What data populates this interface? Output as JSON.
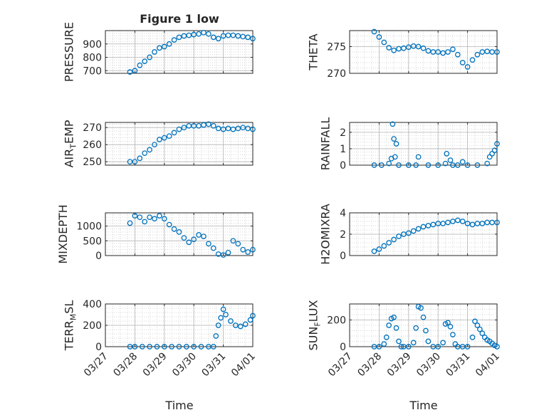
{
  "figure": {
    "title": "Figure 1 low",
    "xlabel": "Time"
  },
  "colors": {
    "marker": "#0072BD",
    "axis": "#262626",
    "grid": "#c8c8c8",
    "background": "#ffffff"
  },
  "chart_data": [
    {
      "type": "scatter",
      "ylabel": "PRESSURE",
      "title": "Figure 1 low",
      "xlim": [
        "03/27",
        "04/01"
      ],
      "ylim": [
        680,
        1000
      ],
      "yticks": [
        700,
        800,
        900
      ],
      "grid": true,
      "x": [
        "03/27 20:00",
        "03/28 00:00",
        "03/28 04:00",
        "03/28 08:00",
        "03/28 12:00",
        "03/28 16:00",
        "03/28 20:00",
        "03/29 00:00",
        "03/29 04:00",
        "03/29 08:00",
        "03/29 12:00",
        "03/29 16:00",
        "03/29 20:00",
        "03/30 00:00",
        "03/30 04:00",
        "03/30 08:00",
        "03/30 12:00",
        "03/30 16:00",
        "03/30 20:00",
        "03/31 00:00",
        "03/31 04:00",
        "03/31 08:00",
        "03/31 12:00",
        "03/31 16:00",
        "03/31 20:00",
        "04/01 00:00"
      ],
      "y": [
        690,
        700,
        740,
        770,
        800,
        840,
        870,
        880,
        900,
        930,
        950,
        960,
        965,
        970,
        975,
        985,
        975,
        950,
        940,
        960,
        965,
        965,
        960,
        955,
        950,
        940
      ]
    },
    {
      "type": "scatter",
      "ylabel": "THETA",
      "xlim": [
        "03/27",
        "04/01"
      ],
      "ylim": [
        270,
        278
      ],
      "yticks": [
        270,
        275
      ],
      "grid": true,
      "x": [
        "03/27 20:00",
        "03/28 00:00",
        "03/28 04:00",
        "03/28 08:00",
        "03/28 12:00",
        "03/28 16:00",
        "03/28 20:00",
        "03/29 00:00",
        "03/29 04:00",
        "03/29 08:00",
        "03/29 12:00",
        "03/29 16:00",
        "03/29 20:00",
        "03/30 00:00",
        "03/30 04:00",
        "03/30 08:00",
        "03/30 12:00",
        "03/30 16:00",
        "03/30 20:00",
        "03/31 00:00",
        "03/31 04:00",
        "03/31 08:00",
        "03/31 12:00",
        "03/31 16:00",
        "03/31 20:00",
        "04/01 00:00"
      ],
      "y": [
        277.8,
        276.8,
        275.8,
        274.8,
        274.3,
        274.6,
        274.7,
        274.9,
        275.1,
        275.0,
        274.7,
        274.2,
        274.0,
        274.0,
        273.8,
        274.0,
        274.5,
        273.5,
        272.0,
        271.2,
        272.5,
        273.5,
        274.0,
        274.1,
        274.0,
        274.0
      ]
    },
    {
      "type": "scatter",
      "ylabel": "AIR_TEMP",
      "ylabel_base": "AIR",
      "ylabel_sub": "T",
      "ylabel_rest": "EMP",
      "xlim": [
        "03/27",
        "04/01"
      ],
      "ylim": [
        248,
        273
      ],
      "yticks": [
        250,
        260,
        270
      ],
      "grid": true,
      "x": [
        "03/27 20:00",
        "03/28 00:00",
        "03/28 04:00",
        "03/28 08:00",
        "03/28 12:00",
        "03/28 16:00",
        "03/28 20:00",
        "03/29 00:00",
        "03/29 04:00",
        "03/29 08:00",
        "03/29 12:00",
        "03/29 16:00",
        "03/29 20:00",
        "03/30 00:00",
        "03/30 04:00",
        "03/30 08:00",
        "03/30 12:00",
        "03/30 16:00",
        "03/30 20:00",
        "03/31 00:00",
        "03/31 04:00",
        "03/31 08:00",
        "03/31 12:00",
        "03/31 16:00",
        "03/31 20:00",
        "04/01 00:00"
      ],
      "y": [
        250,
        250,
        252,
        255,
        257,
        260,
        263,
        264,
        265,
        267,
        269,
        270,
        271,
        271,
        271,
        271.5,
        272,
        271,
        269.5,
        269,
        269.5,
        269,
        269.5,
        270,
        269.5,
        269
      ]
    },
    {
      "type": "scatter",
      "ylabel": "RAINFALL",
      "xlim": [
        "03/27",
        "04/01"
      ],
      "ylim": [
        0,
        2.6
      ],
      "yticks": [
        0,
        1,
        2
      ],
      "grid": true,
      "x": [
        "03/27 20:00",
        "03/28 02:00",
        "03/28 08:00",
        "03/28 10:00",
        "03/28 11:00",
        "03/28 12:00",
        "03/28 13:00",
        "03/28 14:00",
        "03/28 16:00",
        "03/29 00:00",
        "03/29 06:00",
        "03/29 08:00",
        "03/29 16:00",
        "03/30 00:00",
        "03/30 06:00",
        "03/30 07:00",
        "03/30 10:00",
        "03/30 12:00",
        "03/30 16:00",
        "03/30 20:00",
        "03/31 00:00",
        "03/31 08:00",
        "03/31 16:00",
        "03/31 18:00",
        "03/31 20:00",
        "03/31 22:00",
        "04/01 00:00"
      ],
      "y": [
        0,
        0,
        0.1,
        0.4,
        2.5,
        1.6,
        0.5,
        1.3,
        0,
        0,
        0,
        0.5,
        0,
        0,
        0.1,
        0.7,
        0.3,
        0,
        0,
        0.2,
        0,
        0,
        0.1,
        0.5,
        0.7,
        0.9,
        1.3
      ]
    },
    {
      "type": "scatter",
      "ylabel": "MIXDEPTH",
      "xlim": [
        "03/27",
        "04/01"
      ],
      "ylim": [
        0,
        1450
      ],
      "yticks": [
        0,
        500,
        1000
      ],
      "grid": true,
      "x": [
        "03/27 20:00",
        "03/28 00:00",
        "03/28 04:00",
        "03/28 08:00",
        "03/28 12:00",
        "03/28 16:00",
        "03/28 20:00",
        "03/29 00:00",
        "03/29 04:00",
        "03/29 08:00",
        "03/29 12:00",
        "03/29 16:00",
        "03/29 20:00",
        "03/30 00:00",
        "03/30 04:00",
        "03/30 08:00",
        "03/30 12:00",
        "03/30 16:00",
        "03/30 20:00",
        "03/31 00:00",
        "03/31 04:00",
        "03/31 08:00",
        "03/31 12:00",
        "03/31 16:00",
        "03/31 20:00",
        "04/01 00:00"
      ],
      "y": [
        1100,
        1350,
        1300,
        1150,
        1300,
        1250,
        1350,
        1250,
        1050,
        900,
        800,
        600,
        450,
        550,
        700,
        650,
        400,
        250,
        50,
        20,
        100,
        500,
        400,
        200,
        120,
        200
      ]
    },
    {
      "type": "scatter",
      "ylabel": "H2OMIXRA",
      "xlim": [
        "03/27",
        "04/01"
      ],
      "ylim": [
        0,
        4
      ],
      "yticks": [
        0,
        2,
        4
      ],
      "grid": true,
      "x": [
        "03/27 20:00",
        "03/28 00:00",
        "03/28 04:00",
        "03/28 08:00",
        "03/28 12:00",
        "03/28 16:00",
        "03/28 20:00",
        "03/29 00:00",
        "03/29 04:00",
        "03/29 08:00",
        "03/29 12:00",
        "03/29 16:00",
        "03/29 20:00",
        "03/30 00:00",
        "03/30 04:00",
        "03/30 08:00",
        "03/30 12:00",
        "03/30 16:00",
        "03/30 20:00",
        "03/31 00:00",
        "03/31 04:00",
        "03/31 08:00",
        "03/31 12:00",
        "03/31 16:00",
        "03/31 20:00",
        "04/01 00:00"
      ],
      "y": [
        0.4,
        0.6,
        0.9,
        1.2,
        1.5,
        1.8,
        2.0,
        2.1,
        2.3,
        2.5,
        2.7,
        2.8,
        2.9,
        3.0,
        3.0,
        3.1,
        3.2,
        3.3,
        3.2,
        3.0,
        2.9,
        3.0,
        3.0,
        3.1,
        3.1,
        3.1
      ]
    },
    {
      "type": "scatter",
      "ylabel": "TERR_MSL",
      "ylabel_base": "TERR",
      "ylabel_sub": "M",
      "ylabel_rest": "SL",
      "xlim": [
        "03/27",
        "04/01"
      ],
      "ylim": [
        0,
        400
      ],
      "yticks": [
        0,
        200,
        400
      ],
      "grid": true,
      "x": [
        "03/27 20:00",
        "03/28 00:00",
        "03/28 06:00",
        "03/28 12:00",
        "03/28 18:00",
        "03/29 00:00",
        "03/29 06:00",
        "03/29 12:00",
        "03/29 18:00",
        "03/30 00:00",
        "03/30 06:00",
        "03/30 12:00",
        "03/30 16:00",
        "03/30 18:00",
        "03/30 20:00",
        "03/30 22:00",
        "03/31 00:00",
        "03/31 02:00",
        "03/31 06:00",
        "03/31 10:00",
        "03/31 14:00",
        "03/31 18:00",
        "03/31 22:00",
        "04/01 00:00"
      ],
      "y": [
        0,
        0,
        0,
        0,
        0,
        0,
        0,
        0,
        0,
        0,
        0,
        0,
        0,
        100,
        200,
        270,
        350,
        300,
        240,
        200,
        190,
        210,
        250,
        290
      ]
    },
    {
      "type": "scatter",
      "ylabel": "SUN_FLUX",
      "ylabel_base": "SUN",
      "ylabel_sub": "F",
      "ylabel_rest": "LUX",
      "xlim": [
        "03/27",
        "04/01"
      ],
      "ylim": [
        0,
        320
      ],
      "yticks": [
        0,
        200
      ],
      "grid": true,
      "x": [
        "03/27 20:00",
        "03/28 00:00",
        "03/28 04:00",
        "03/28 06:00",
        "03/28 08:00",
        "03/28 10:00",
        "03/28 12:00",
        "03/28 14:00",
        "03/28 16:00",
        "03/28 18:00",
        "03/28 20:00",
        "03/29 00:00",
        "03/29 04:00",
        "03/29 06:00",
        "03/29 08:00",
        "03/29 10:00",
        "03/29 12:00",
        "03/29 14:00",
        "03/29 16:00",
        "03/29 20:00",
        "03/30 00:00",
        "03/30 04:00",
        "03/30 06:00",
        "03/30 08:00",
        "03/30 10:00",
        "03/30 12:00",
        "03/30 14:00",
        "03/30 16:00",
        "03/30 20:00",
        "03/31 00:00",
        "03/31 04:00",
        "03/31 06:00",
        "03/31 08:00",
        "03/31 10:00",
        "03/31 12:00",
        "03/31 14:00",
        "03/31 16:00",
        "03/31 18:00",
        "03/31 20:00",
        "03/31 22:00",
        "04/01 00:00"
      ],
      "y": [
        0,
        0,
        20,
        70,
        160,
        210,
        220,
        140,
        40,
        0,
        0,
        0,
        30,
        140,
        300,
        290,
        220,
        120,
        40,
        0,
        0,
        30,
        170,
        180,
        150,
        90,
        20,
        0,
        0,
        0,
        70,
        190,
        160,
        130,
        100,
        70,
        50,
        40,
        25,
        10,
        0
      ]
    }
  ],
  "xticks": [
    "03/27",
    "03/28",
    "03/29",
    "03/30",
    "03/31",
    "04/01"
  ]
}
